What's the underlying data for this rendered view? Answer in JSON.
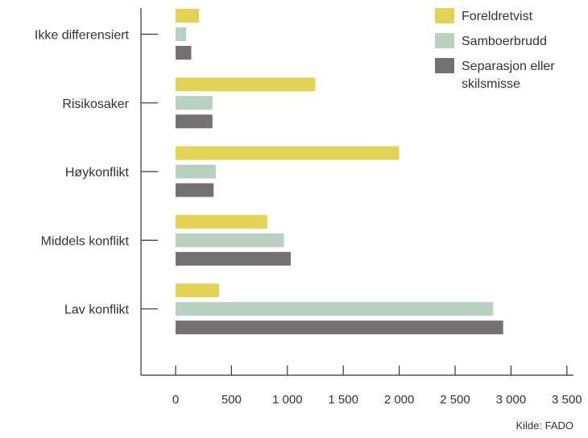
{
  "chart_data": {
    "type": "bar",
    "orientation": "horizontal",
    "categories": [
      "Ikke differensiert",
      "Risikosaker",
      "Høykonflikt",
      "Middels konflikt",
      "Lav konflikt"
    ],
    "series": [
      {
        "name": "Foreldretvist",
        "color": "#e2d357",
        "values": [
          210,
          1250,
          2000,
          820,
          390
        ]
      },
      {
        "name": "Samboerbrudd",
        "color": "#b7d0bf",
        "values": [
          95,
          330,
          360,
          970,
          2840
        ]
      },
      {
        "name": "Separasjon eller skilsmisse",
        "color": "#757173",
        "values": [
          140,
          330,
          340,
          1030,
          2930
        ]
      }
    ],
    "xlim": [
      -300,
      3500
    ],
    "xticks": [
      0,
      500,
      1000,
      1500,
      2000,
      2500,
      3000,
      3500
    ],
    "xtick_labels": [
      "0",
      "500",
      "1 000",
      "1 500",
      "2 000",
      "2 500",
      "3 000",
      "3 500"
    ],
    "xlabel": "",
    "ylabel": "",
    "grid": false,
    "legend_position": "top-right"
  },
  "source": "Kilde: FADO"
}
